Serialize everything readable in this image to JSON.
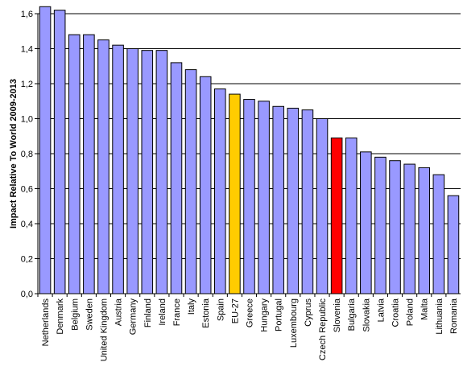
{
  "chart_data": {
    "type": "bar",
    "title": "",
    "xlabel": "",
    "ylabel": "Impact Relative To World 2009-2013",
    "ylim": [
      0,
      1.6
    ],
    "yticks": [
      "0,0",
      "0,2",
      "0,4",
      "0,6",
      "0,8",
      "1,0",
      "1,2",
      "1,4",
      "1,6"
    ],
    "grid": "horizontal",
    "legend": "none",
    "categories": [
      "Netherlands",
      "Denmark",
      "Belgium",
      "Sweden",
      "United Kingdom",
      "Austria",
      "Germany",
      "Finland",
      "Ireland",
      "France",
      "Italy",
      "Estonia",
      "Spain",
      "EU-27",
      "Greece",
      "Hungary",
      "Portugal",
      "Luxembourg",
      "Cyprus",
      "Czech Republic",
      "Slovenia",
      "Bulgaria",
      "Slovakia",
      "Latvia",
      "Croatia",
      "Poland",
      "Malta",
      "Lithuania",
      "Romania"
    ],
    "values": [
      1.64,
      1.62,
      1.48,
      1.48,
      1.45,
      1.42,
      1.4,
      1.39,
      1.39,
      1.32,
      1.28,
      1.24,
      1.17,
      1.14,
      1.11,
      1.1,
      1.07,
      1.06,
      1.05,
      1.0,
      0.89,
      0.89,
      0.81,
      0.78,
      0.76,
      0.74,
      0.72,
      0.68,
      0.56
    ],
    "colors": {
      "default": "#9999ff",
      "highlights": {
        "EU-27": "#ffcc00",
        "Slovenia": "#ff0000"
      },
      "bar_stroke": "#000000",
      "grid": "#000000"
    }
  }
}
